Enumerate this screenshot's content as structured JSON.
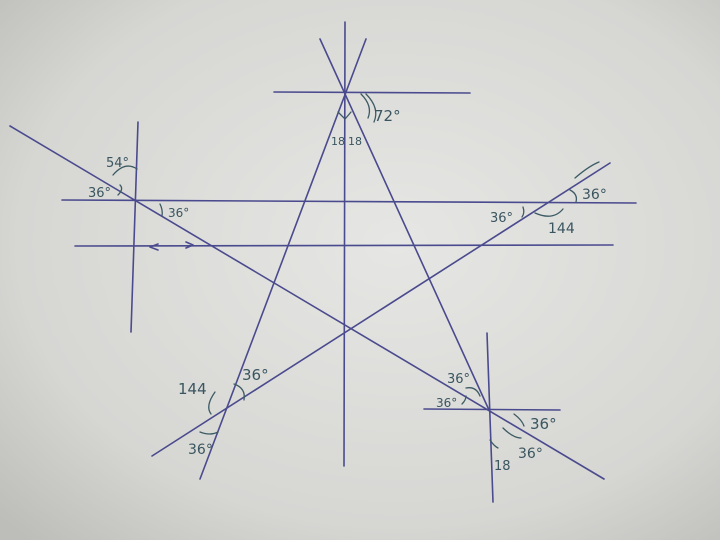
{
  "angle_labels": {
    "apex_right": "72°",
    "apex_half_left": "18",
    "apex_half_right": "18",
    "left_top_upper": "54°",
    "left_outer": "36°",
    "left_lower": "36°",
    "right_inner": "36°",
    "right_outer": "36°",
    "right_supp": "144",
    "bottom_left_supp": "144",
    "bottom_left_upper": "36°",
    "bottom_left_lower": "36°",
    "bottom_right_upper": "36°",
    "bottom_right_left": "36°",
    "bottom_right_right": "36°",
    "bottom_right_below": "36°",
    "bottom_right_half": "18"
  }
}
